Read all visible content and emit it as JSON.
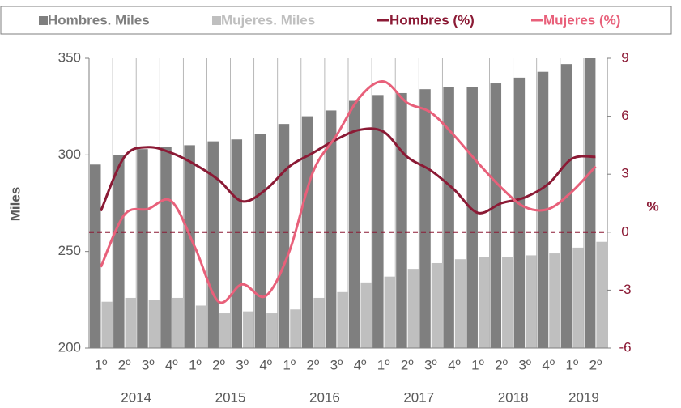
{
  "chart_data": {
    "type": "bar-line",
    "categories": [
      "1º",
      "2º",
      "3º",
      "4º",
      "1º",
      "2º",
      "3º",
      "4º",
      "1º",
      "2º",
      "3º",
      "4º",
      "1º",
      "2º",
      "3º",
      "4º",
      "1º",
      "2º",
      "3º",
      "4º",
      "1º",
      "2º"
    ],
    "years": [
      "2014",
      null,
      null,
      null,
      "2015",
      null,
      null,
      null,
      "2016",
      null,
      null,
      null,
      "2017",
      null,
      null,
      null,
      "2018",
      null,
      null,
      null,
      "2019",
      null
    ],
    "ylabel": "Miles",
    "y2label": "%",
    "ylim": [
      200,
      350
    ],
    "yticks": [
      200,
      250,
      300,
      350
    ],
    "y2lim": [
      -6,
      9
    ],
    "y2ticks": [
      -6,
      -3,
      0,
      3,
      6,
      9
    ],
    "series": [
      {
        "name": "Hombres. Miles",
        "type": "bar",
        "color": "#7f7f7f",
        "values": [
          295,
          300,
          303,
          304,
          305,
          307,
          308,
          311,
          316,
          320,
          323,
          328,
          331,
          332,
          334,
          335,
          335,
          337,
          340,
          343,
          347,
          350
        ]
      },
      {
        "name": "Mujeres. Miles",
        "type": "bar",
        "color": "#bfbfbf",
        "values": [
          224,
          226,
          225,
          226,
          222,
          218,
          219,
          218,
          220,
          226,
          229,
          234,
          237,
          241,
          244,
          246,
          247,
          247,
          248,
          249,
          252,
          255
        ]
      },
      {
        "name": "Hombres (%)",
        "type": "line",
        "axis": "y2",
        "color": "#8b1a35",
        "values": [
          1.1,
          3.9,
          4.4,
          4.1,
          3.5,
          2.7,
          1.6,
          2.2,
          3.4,
          4.1,
          4.8,
          5.3,
          5.2,
          3.9,
          3.2,
          2.2,
          1.0,
          1.5,
          1.8,
          2.5,
          3.8,
          3.9
        ]
      },
      {
        "name": "Mujeres (%)",
        "type": "line",
        "axis": "y2",
        "color": "#e8607a",
        "values": [
          -1.8,
          0.9,
          1.2,
          1.6,
          -0.8,
          -3.6,
          -2.7,
          -3.3,
          -1.0,
          3.1,
          5.0,
          7.0,
          7.8,
          6.7,
          6.2,
          5.0,
          3.6,
          2.3,
          1.3,
          1.2,
          2.1,
          3.4
        ]
      }
    ]
  }
}
